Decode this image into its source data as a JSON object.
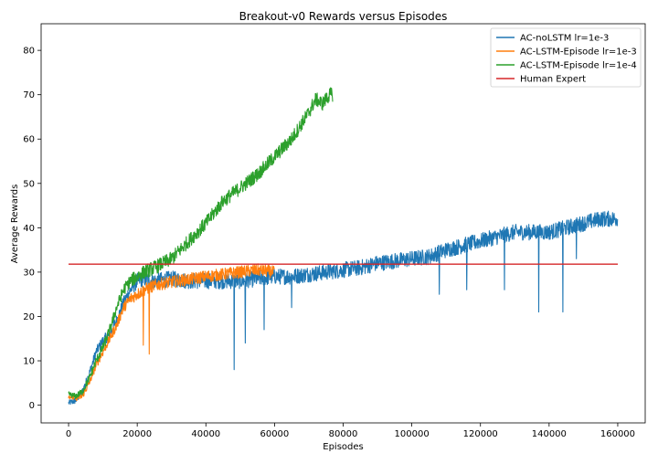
{
  "chart_data": {
    "type": "line",
    "title": "Breakout-v0 Rewards versus Episodes",
    "xlabel": "Episodes",
    "ylabel": "Average Rewards",
    "xlim": [
      -8000,
      168000
    ],
    "ylim": [
      -4,
      86
    ],
    "xticks": [
      0,
      20000,
      40000,
      60000,
      80000,
      100000,
      120000,
      140000,
      160000
    ],
    "yticks": [
      0,
      10,
      20,
      30,
      40,
      50,
      60,
      70,
      80
    ],
    "legend_position": "top-right",
    "grid": false,
    "series": [
      {
        "name": "AC-noLSTM lr=1e-3",
        "color": "#1f77b4",
        "noise": 1.8,
        "x": [
          0,
          2000,
          4000,
          6000,
          8000,
          10000,
          12000,
          14000,
          16000,
          18000,
          20000,
          22000,
          25000,
          30000,
          35000,
          40000,
          45000,
          50000,
          55000,
          60000,
          65000,
          70000,
          75000,
          80000,
          85000,
          90000,
          95000,
          100000,
          105000,
          110000,
          115000,
          120000,
          125000,
          130000,
          135000,
          140000,
          145000,
          150000,
          155000,
          160000
        ],
        "y": [
          0.5,
          1,
          3,
          7,
          12,
          14.5,
          16,
          19,
          23,
          26,
          28,
          28.5,
          28,
          28.5,
          28,
          28,
          28,
          28,
          28.5,
          29,
          29,
          29.5,
          30,
          30.5,
          31,
          32,
          32.5,
          33,
          33.5,
          35,
          36,
          37,
          38,
          39,
          39,
          39,
          40,
          41,
          42,
          42
        ],
        "spikes": [
          {
            "x": 48200,
            "y": 8
          },
          {
            "x": 51500,
            "y": 14
          },
          {
            "x": 57000,
            "y": 17
          },
          {
            "x": 65000,
            "y": 22
          },
          {
            "x": 108000,
            "y": 25
          },
          {
            "x": 116000,
            "y": 26
          },
          {
            "x": 127000,
            "y": 26
          },
          {
            "x": 137000,
            "y": 21
          },
          {
            "x": 144000,
            "y": 21
          },
          {
            "x": 148000,
            "y": 33
          }
        ]
      },
      {
        "name": "AC-LSTM-Episode lr=1e-3",
        "color": "#ff7f0e",
        "noise": 1.4,
        "x": [
          0,
          2000,
          4000,
          6000,
          8000,
          10000,
          12000,
          14000,
          16000,
          18000,
          20000,
          22000,
          25000,
          28000,
          32000,
          36000,
          40000,
          45000,
          50000,
          55000,
          60000
        ],
        "y": [
          2,
          1.5,
          2,
          5,
          9,
          12,
          15,
          18,
          22,
          24,
          25,
          26,
          27,
          27.5,
          28,
          28.5,
          29,
          29.5,
          30,
          30.5,
          30
        ],
        "spikes": [
          {
            "x": 21800,
            "y": 13.5
          },
          {
            "x": 23500,
            "y": 11.5
          }
        ]
      },
      {
        "name": "AC-LSTM-Episode lr=1e-4",
        "color": "#2ca02c",
        "noise": 1.6,
        "x": [
          0,
          2000,
          4000,
          6000,
          8000,
          10000,
          12000,
          14000,
          16000,
          18000,
          20000,
          22000,
          25000,
          30000,
          35000,
          40000,
          45000,
          50000,
          55000,
          60000,
          65000,
          70000,
          72000,
          74000,
          76000,
          77000
        ],
        "y": [
          2.5,
          2,
          3,
          6,
          10,
          13,
          17,
          22,
          26,
          28,
          29,
          30,
          31,
          33,
          37,
          41,
          46,
          49,
          52,
          56,
          60,
          66,
          69,
          68,
          70,
          70
        ],
        "spikes": []
      },
      {
        "name": "Human Expert",
        "color": "#d62728",
        "noise": 0,
        "x": [
          0,
          160000
        ],
        "y": [
          31.8,
          31.8
        ],
        "spikes": []
      }
    ]
  }
}
